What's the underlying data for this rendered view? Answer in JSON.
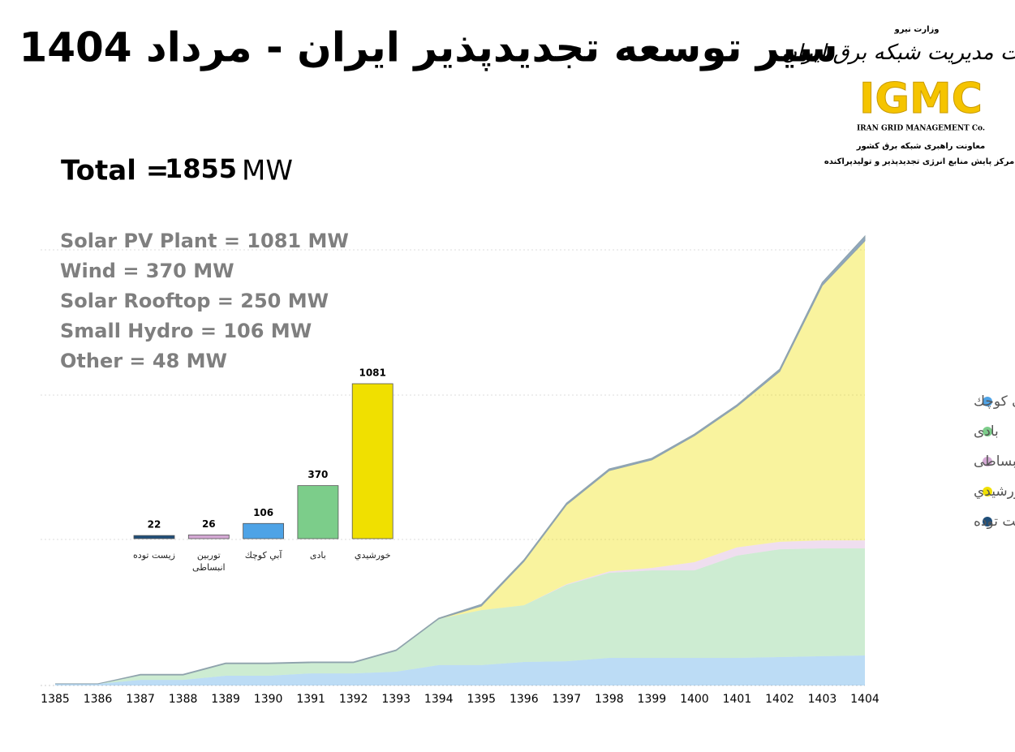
{
  "header": {
    "title": "سیر توسعه تجدیدپذیر ایران - مرداد 1404",
    "total_label": "Total =",
    "total_value": "1855",
    "total_unit": "MW",
    "breakdown": [
      "Solar PV Plant = 1081 MW",
      "Wind = 370 MW",
      "Solar Rooftop = 250 MW",
      "Small Hydro = 106 MW",
      "Other = 48 MW"
    ]
  },
  "logo": {
    "ministry": "وزارت نیرو",
    "company": "شرکت مدیریت شبکه برق ایران",
    "acronym": "IGMC",
    "english": "IRAN GRID MANAGEMENT Co.",
    "line1": "معاونت راهبری شبکه برق کشور",
    "line2": "مرکز پایش منابع انرژی تجدیدپذیر و تولیدپراکنده"
  },
  "chart_data": [
    {
      "type": "area",
      "categories": [
        "1385",
        "1386",
        "1387",
        "1388",
        "1389",
        "1390",
        "1391",
        "1392",
        "1393",
        "1394",
        "1395",
        "1396",
        "1397",
        "1398",
        "1399",
        "1400",
        "1401",
        "1402",
        "1403",
        "1404"
      ],
      "ylim": [
        0,
        1855
      ],
      "legend": "right",
      "series": [
        {
          "name": "آبي كوچك",
          "color": "#4ea3e6",
          "values": [
            7,
            7,
            23,
            23,
            40,
            40,
            50,
            50,
            57,
            84,
            84,
            97,
            100,
            114,
            114,
            114,
            114,
            117,
            121,
            124
          ]
        },
        {
          "name": "بادی",
          "color": "#7ccd8a",
          "values": [
            0,
            0,
            20,
            20,
            50,
            50,
            44,
            44,
            87,
            191,
            227,
            234,
            315,
            351,
            361,
            361,
            422,
            445,
            445,
            442
          ]
        },
        {
          "name": "توربين انبساطی",
          "color": "#d4a9d4",
          "values": [
            0,
            0,
            0,
            0,
            0,
            0,
            0,
            0,
            0,
            0,
            0,
            0,
            3,
            6,
            10,
            34,
            34,
            31,
            33,
            33
          ]
        },
        {
          "name": "خورشيدي",
          "color": "#f0e000",
          "values": [
            0,
            0,
            0,
            0,
            0,
            0,
            0,
            0,
            0,
            0,
            17,
            181,
            328,
            416,
            446,
            522,
            582,
            703,
            1052,
            1236
          ]
        },
        {
          "name": "زيست توده",
          "color": "#1f4e79",
          "values": [
            0,
            0,
            3,
            3,
            3,
            3,
            3,
            3,
            3,
            3,
            7,
            7,
            7,
            7,
            7,
            7,
            7,
            10,
            13,
            20
          ]
        }
      ]
    },
    {
      "type": "bar",
      "categories": [
        "زیست توده",
        "توربين انبساطی",
        "آبي كوچك",
        "بادی",
        "خورشيدي"
      ],
      "values": [
        22,
        26,
        106,
        370,
        1081
      ],
      "colors": [
        "#1f4e79",
        "#d4a9d4",
        "#4ea3e6",
        "#7ccd8a",
        "#f0e000"
      ],
      "ylim": [
        0,
        1081
      ]
    }
  ]
}
